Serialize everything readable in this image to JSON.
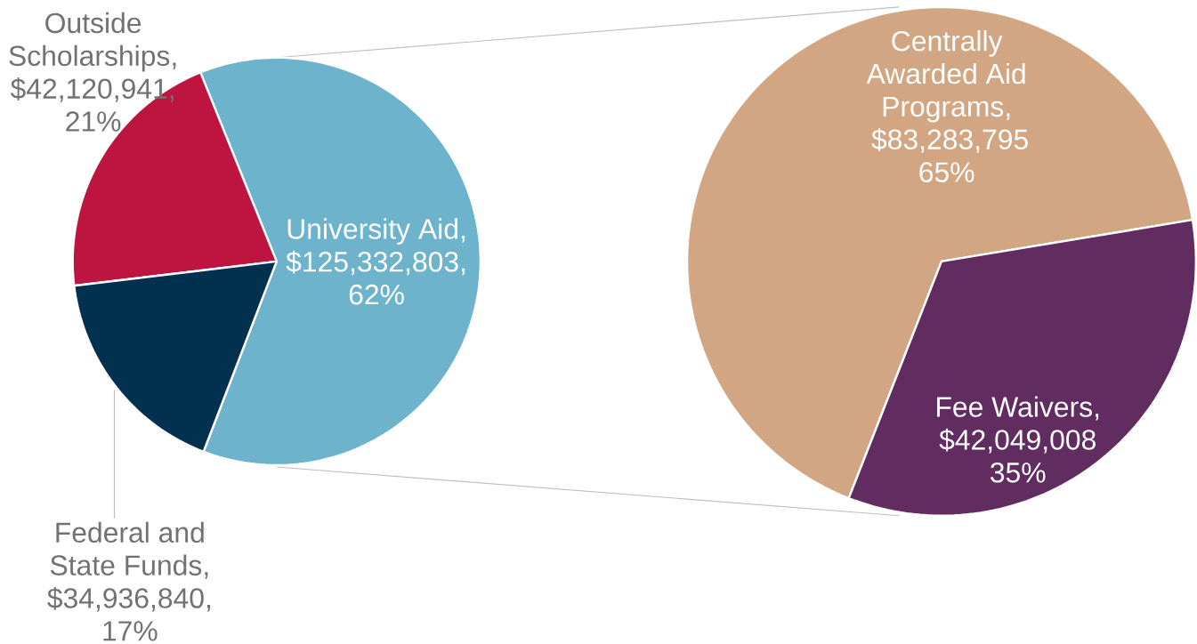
{
  "chart_data": [
    {
      "type": "pie",
      "categories": [
        "University Aid",
        "Outside Scholarships",
        "Federal and State Funds"
      ],
      "values": [
        125332803,
        42120941,
        34936840
      ],
      "colors": [
        "#6db3cc",
        "#be1540",
        "#02304f"
      ],
      "value_labels": [
        ", $125,332,803, 62%",
        ", $42,120,941, 21%",
        ", $34,936,840, 17%"
      ]
    },
    {
      "type": "pie",
      "categories": [
        "Centrally Awarded Aid Programs",
        "Fee Waivers"
      ],
      "values": [
        83283795,
        42049008
      ],
      "colors": [
        "#d2a683",
        "#612c60"
      ],
      "value_labels": [
        ", $83,283,795 65%",
        ", $42,049,008 35%"
      ]
    }
  ]
}
